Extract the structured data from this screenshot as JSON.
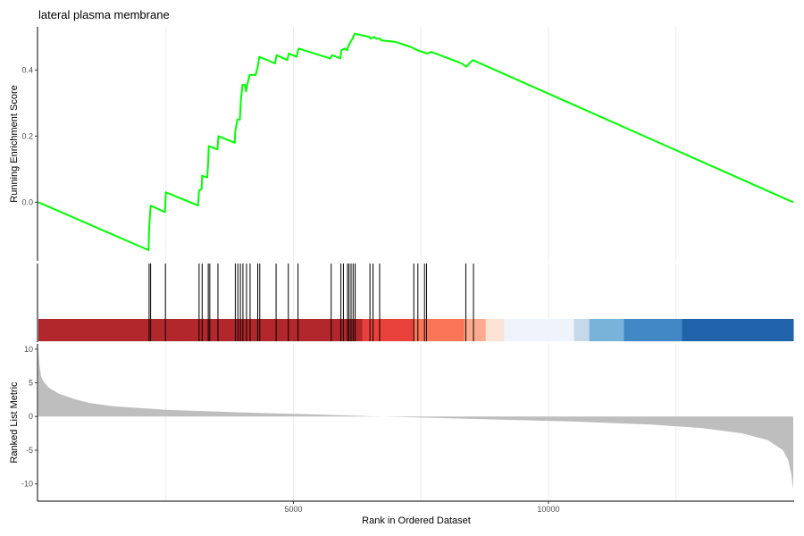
{
  "chart_data": {
    "type": "gsea",
    "title": "lateral plasma membrane",
    "x_label": "Rank in Ordered Dataset",
    "x_range": [
      0,
      14800
    ],
    "x_ticks": [
      5000,
      10000
    ],
    "x_tick_labels": [
      "5000",
      "10000"
    ],
    "grid": "vertical",
    "colors": {
      "es_line": "#00ff00",
      "hit_tick": "#000000",
      "metric_fill": "#bebebe",
      "axis": "#000000",
      "grid": "#ebebeb"
    },
    "enrichment_panel": {
      "y_label": "Running Enrichment Score",
      "y_range": [
        -0.145,
        0.52
      ],
      "y_ticks": [
        0.0,
        0.2,
        0.4
      ],
      "y_tick_labels": [
        "0.0",
        "0.2",
        "0.4"
      ],
      "points": [
        [
          0,
          0.0
        ],
        [
          2160,
          -0.145
        ],
        [
          2170,
          -0.08
        ],
        [
          2200,
          -0.01
        ],
        [
          2480,
          -0.03
        ],
        [
          2500,
          0.03
        ],
        [
          3130,
          -0.01
        ],
        [
          3150,
          0.035
        ],
        [
          3200,
          0.04
        ],
        [
          3210,
          0.08
        ],
        [
          3310,
          0.075
        ],
        [
          3330,
          0.125
        ],
        [
          3340,
          0.17
        ],
        [
          3510,
          0.16
        ],
        [
          3530,
          0.2
        ],
        [
          3850,
          0.18
        ],
        [
          3860,
          0.215
        ],
        [
          3900,
          0.25
        ],
        [
          3950,
          0.25
        ],
        [
          3970,
          0.31
        ],
        [
          4000,
          0.355
        ],
        [
          4050,
          0.355
        ],
        [
          4070,
          0.335
        ],
        [
          4100,
          0.36
        ],
        [
          4140,
          0.385
        ],
        [
          4260,
          0.385
        ],
        [
          4300,
          0.41
        ],
        [
          4310,
          0.42
        ],
        [
          4330,
          0.44
        ],
        [
          4640,
          0.42
        ],
        [
          4670,
          0.445
        ],
        [
          4880,
          0.43
        ],
        [
          4910,
          0.45
        ],
        [
          5060,
          0.44
        ],
        [
          5100,
          0.465
        ],
        [
          5720,
          0.435
        ],
        [
          5760,
          0.445
        ],
        [
          5920,
          0.435
        ],
        [
          5940,
          0.46
        ],
        [
          6010,
          0.465
        ],
        [
          6050,
          0.46
        ],
        [
          6070,
          0.47
        ],
        [
          6120,
          0.485
        ],
        [
          6160,
          0.495
        ],
        [
          6200,
          0.51
        ],
        [
          6490,
          0.5
        ],
        [
          6510,
          0.495
        ],
        [
          6580,
          0.5
        ],
        [
          6620,
          0.495
        ],
        [
          6700,
          0.495
        ],
        [
          6720,
          0.49
        ],
        [
          7000,
          0.485
        ],
        [
          7300,
          0.47
        ],
        [
          7430,
          0.46
        ],
        [
          7520,
          0.455
        ],
        [
          7620,
          0.45
        ],
        [
          7700,
          0.455
        ],
        [
          8300,
          0.42
        ],
        [
          8390,
          0.41
        ],
        [
          8420,
          0.415
        ],
        [
          8480,
          0.425
        ],
        [
          8520,
          0.43
        ],
        [
          14800,
          0.0
        ]
      ]
    },
    "hits_panel": {
      "hit_positions": [
        2170,
        2200,
        2490,
        3150,
        3210,
        3330,
        3360,
        3520,
        3860,
        3910,
        3960,
        4010,
        4080,
        4150,
        4300,
        4340,
        4660,
        4900,
        5090,
        5740,
        5930,
        5980,
        6060,
        6090,
        6130,
        6170,
        6210,
        6500,
        6560,
        6690,
        7360,
        7440,
        7570,
        7610,
        8380,
        8530
      ],
      "heat_bands": [
        {
          "from": 0,
          "to": 6350,
          "color": "#b2272b"
        },
        {
          "from": 6350,
          "to": 7350,
          "color": "#e8413b"
        },
        {
          "from": 7350,
          "to": 8350,
          "color": "#fb7657"
        },
        {
          "from": 8350,
          "to": 8770,
          "color": "#fcab8f"
        },
        {
          "from": 8770,
          "to": 9130,
          "color": "#fde2d6"
        },
        {
          "from": 9130,
          "to": 10500,
          "color": "#eff3fb"
        },
        {
          "from": 10500,
          "to": 10800,
          "color": "#c5d9ea"
        },
        {
          "from": 10800,
          "to": 11480,
          "color": "#79b3d9"
        },
        {
          "from": 11480,
          "to": 12620,
          "color": "#4188c4"
        },
        {
          "from": 12620,
          "to": 14800,
          "color": "#2063ab"
        }
      ]
    },
    "metric_panel": {
      "y_label": "Ranked List Metric",
      "y_range": [
        -11.5,
        10.5
      ],
      "y_ticks": [
        10,
        5,
        0,
        -5,
        -10
      ],
      "y_tick_labels": [
        "10",
        "5",
        "0",
        "-5",
        "-10"
      ],
      "points": [
        [
          0,
          10.0
        ],
        [
          20,
          7.8
        ],
        [
          50,
          6.0
        ],
        [
          100,
          5.2
        ],
        [
          200,
          4.3
        ],
        [
          400,
          3.4
        ],
        [
          700,
          2.6
        ],
        [
          1000,
          2.0
        ],
        [
          1500,
          1.5
        ],
        [
          2500,
          1.0
        ],
        [
          4000,
          0.6
        ],
        [
          5500,
          0.3
        ],
        [
          6500,
          0.05
        ],
        [
          7000,
          -0.05
        ],
        [
          8000,
          -0.25
        ],
        [
          9000,
          -0.45
        ],
        [
          10500,
          -0.75
        ],
        [
          12000,
          -1.2
        ],
        [
          13000,
          -1.7
        ],
        [
          13800,
          -2.5
        ],
        [
          14300,
          -3.5
        ],
        [
          14600,
          -5.0
        ],
        [
          14700,
          -6.5
        ],
        [
          14760,
          -8.5
        ],
        [
          14800,
          -10.8
        ]
      ]
    }
  }
}
